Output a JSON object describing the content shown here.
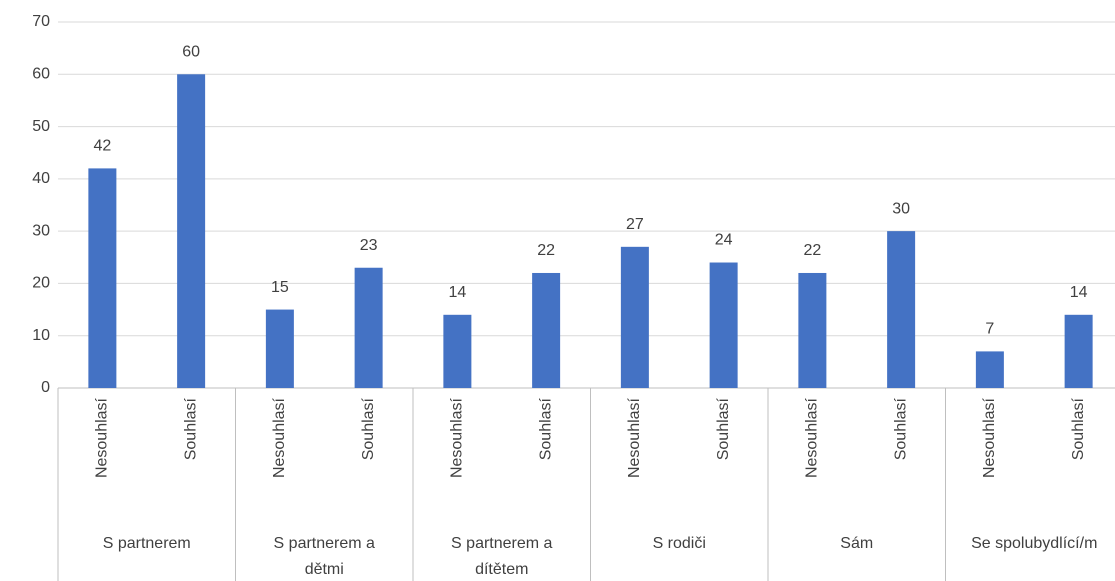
{
  "chart_data": {
    "type": "bar",
    "categories": [
      "Nesouhlasí",
      "Souhlasí",
      "Nesouhlasí",
      "Souhlasí",
      "Nesouhlasí",
      "Souhlasí",
      "Nesouhlasí",
      "Souhlasí",
      "Nesouhlasí",
      "Souhlasí",
      "Nesouhlasí",
      "Souhlasí"
    ],
    "groups": [
      "S partnerem",
      "S partnerem a dětmi",
      "S partnerem a dítětem",
      "S rodiči",
      "Sám",
      "Se spolubydlící/m"
    ],
    "values": [
      42,
      60,
      15,
      23,
      14,
      22,
      27,
      24,
      22,
      30,
      7,
      14
    ],
    "color": "#4472c4",
    "ylim": [
      0,
      70
    ],
    "yticks": [
      0,
      10,
      20,
      30,
      40,
      50,
      60,
      70
    ],
    "grid": true
  }
}
